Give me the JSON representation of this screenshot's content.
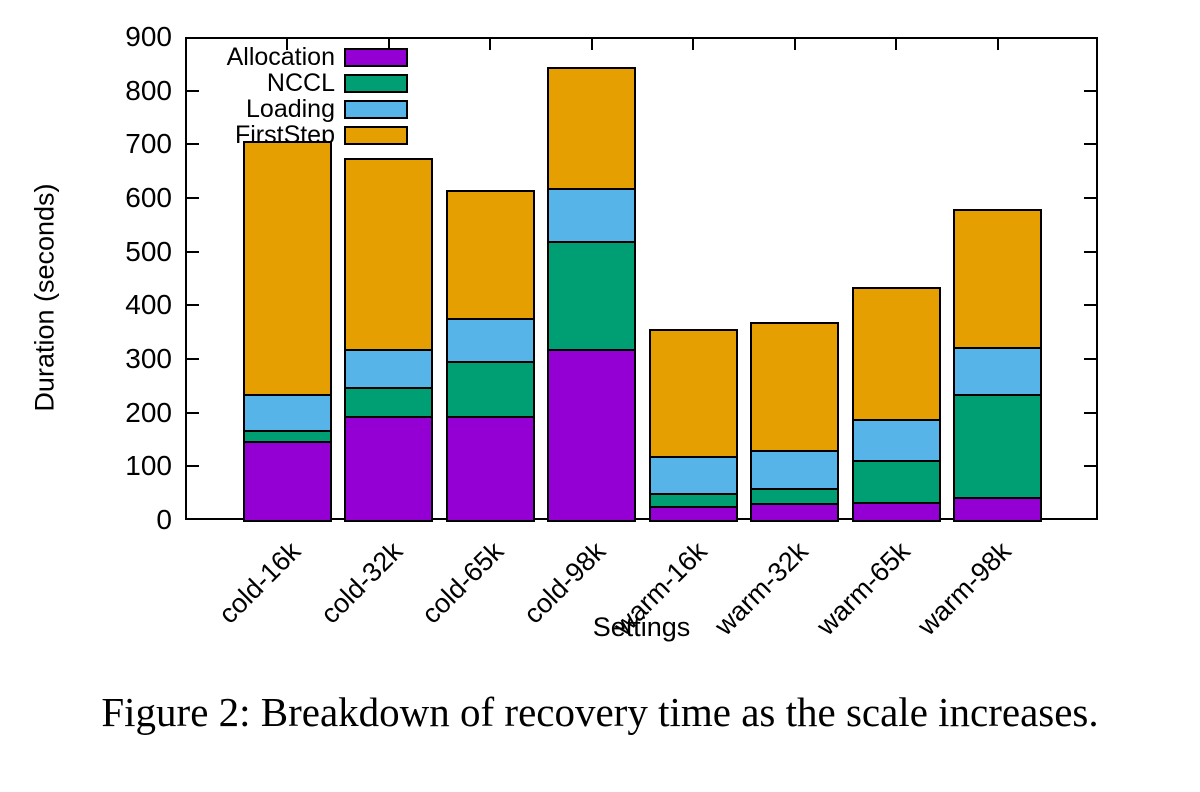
{
  "caption": "Figure 2: Breakdown of recovery time as the scale increases.",
  "chart_data": {
    "type": "bar",
    "stacked": true,
    "title": "",
    "xlabel": "Settings",
    "ylabel": "Duration (seconds)",
    "ylim": [
      0,
      900
    ],
    "ytick_step": 100,
    "grid": false,
    "legend_position": "top-left-inside",
    "categories": [
      "cold-16k",
      "cold-32k",
      "cold-65k",
      "cold-98k",
      "warm-16k",
      "warm-32k",
      "warm-65k",
      "warm-98k"
    ],
    "series": [
      {
        "name": "Allocation",
        "color": "#9400d3",
        "values": [
          148,
          193,
          193,
          318,
          26,
          32,
          33,
          43
        ]
      },
      {
        "name": "NCCL",
        "color": "#009e73",
        "values": [
          20,
          54,
          103,
          201,
          24,
          28,
          79,
          191
        ]
      },
      {
        "name": "Loading",
        "color": "#56b4e9",
        "values": [
          67,
          71,
          80,
          100,
          69,
          70,
          76,
          88
        ]
      },
      {
        "name": "FirstStep",
        "color": "#e69f00",
        "values": [
          468,
          353,
          236,
          221,
          234,
          236,
          242,
          254
        ]
      }
    ],
    "stack_totals": [
      703,
      671,
      612,
      840,
      353,
      366,
      430,
      576
    ],
    "axis_color": "#000000",
    "bar_border_color": "#000000"
  }
}
